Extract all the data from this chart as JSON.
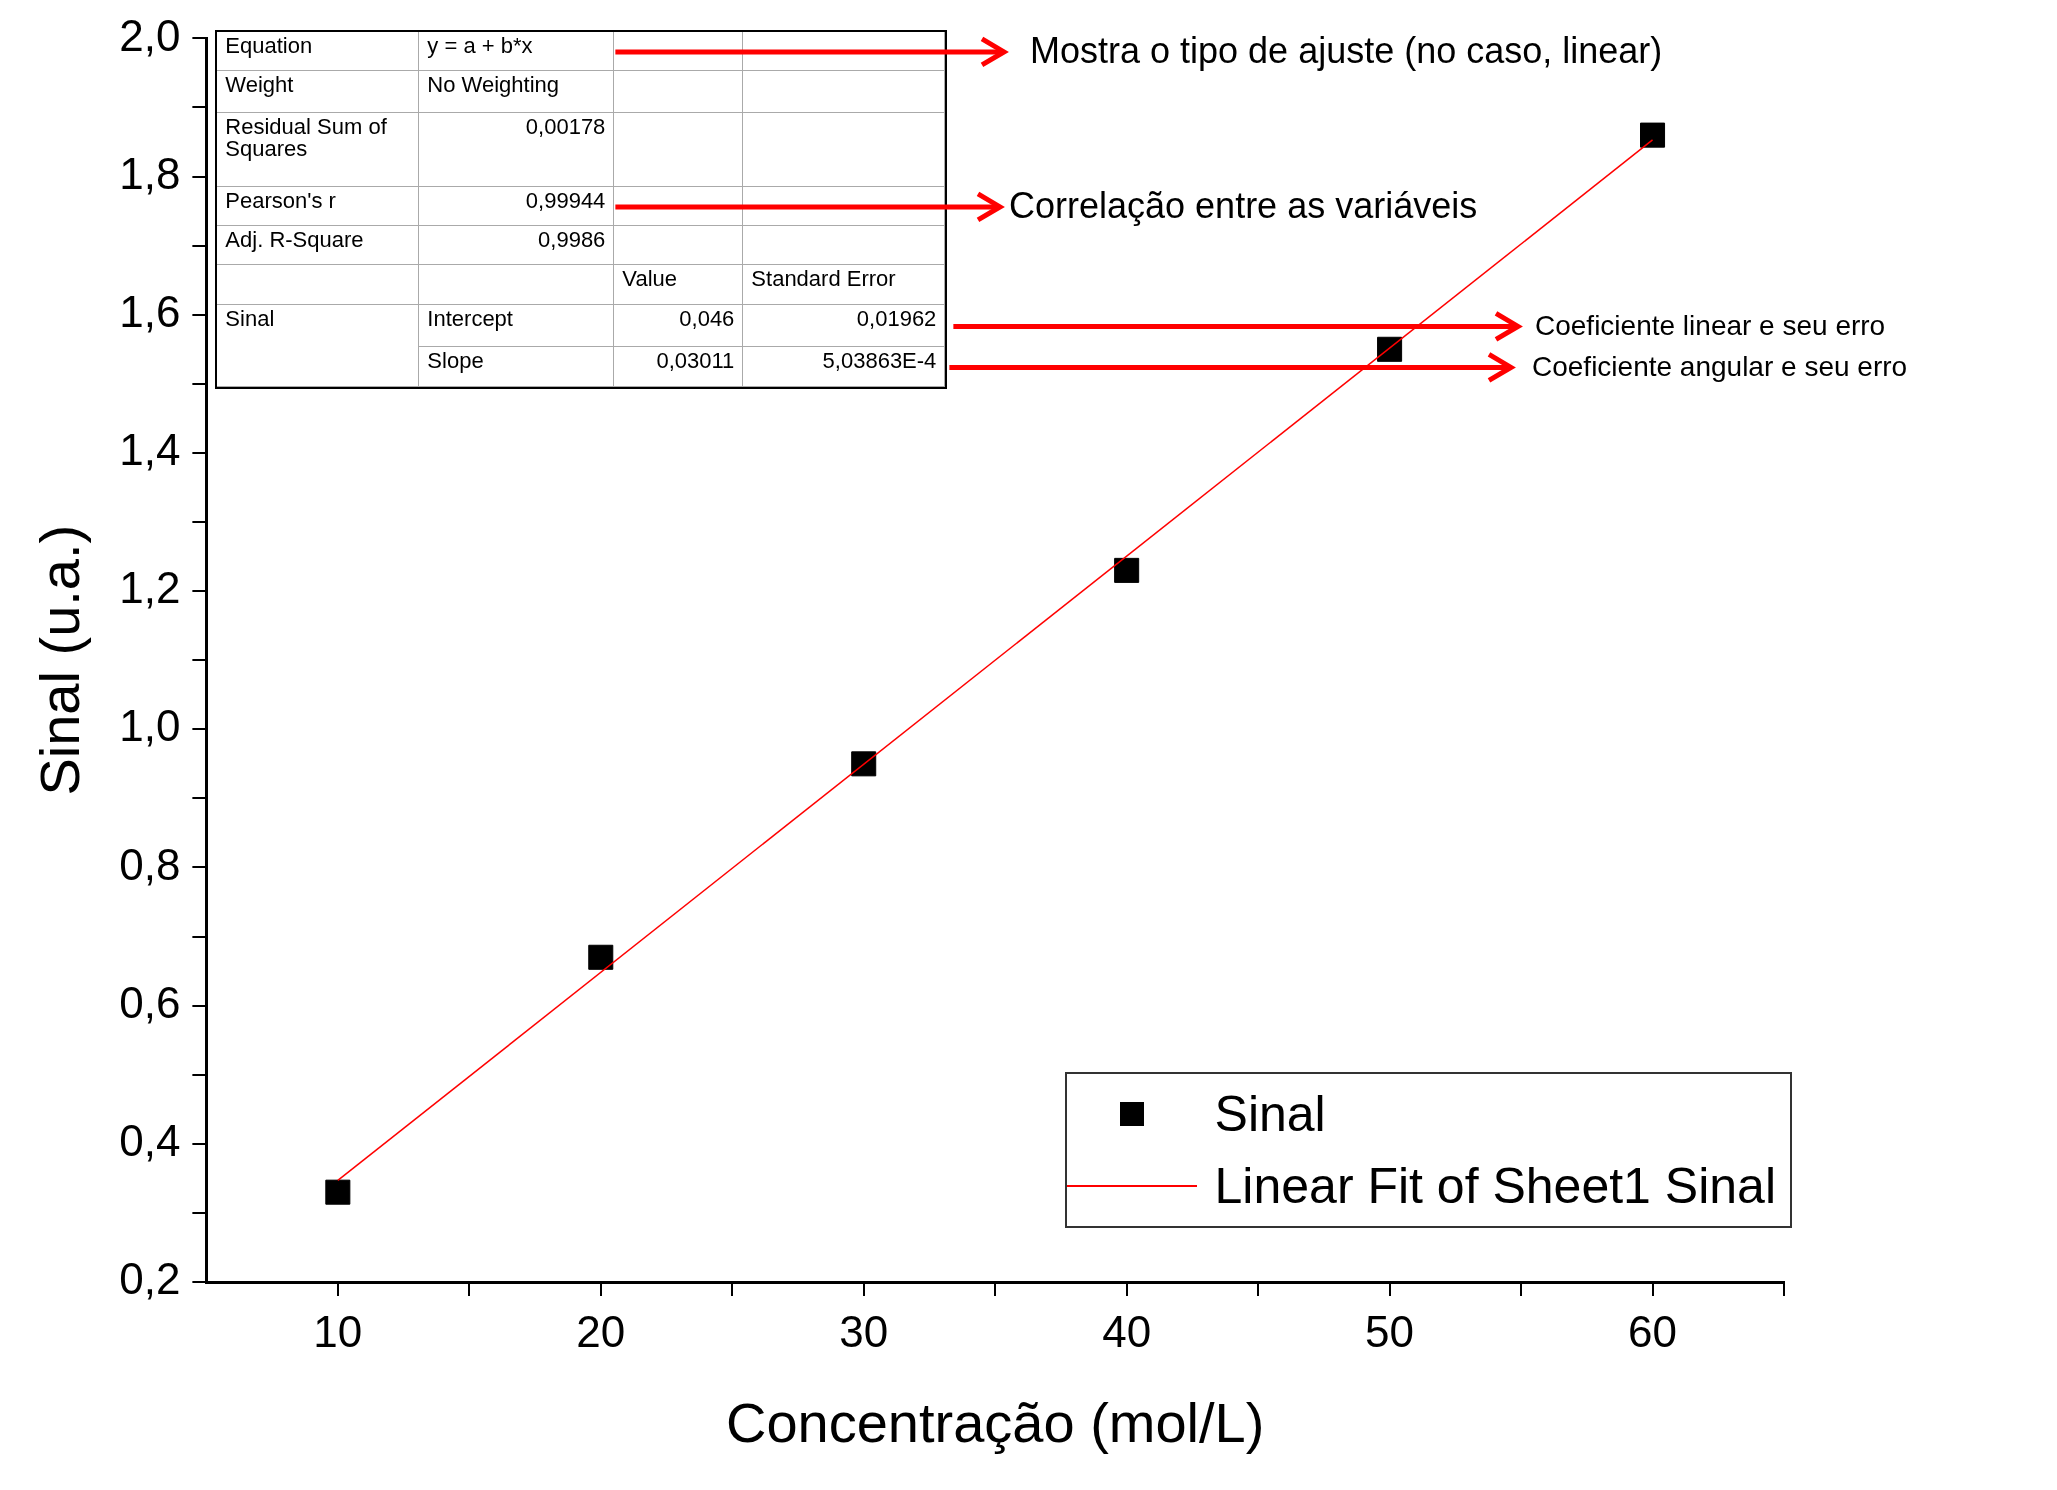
{
  "chart_data": {
    "type": "scatter",
    "xlabel": "Concentração (mol/L)",
    "ylabel": "Sinal (u.a.)",
    "xlim": [
      5,
      65
    ],
    "xticks": [
      10,
      {
        "value": 15,
        "label": null
      },
      20,
      {
        "value": 25,
        "label": null
      },
      30,
      {
        "value": 35,
        "label": null
      },
      40,
      {
        "value": 45,
        "label": null
      },
      50,
      {
        "value": 55,
        "label": null
      },
      60,
      {
        "value": 65,
        "label": null
      }
    ],
    "ylim": [
      0.2,
      2.0
    ],
    "yticks": [
      {
        "value": 0.2,
        "label": "0,2"
      },
      {
        "value": 0.3,
        "label": null
      },
      {
        "value": 0.4,
        "label": "0,4"
      },
      {
        "value": 0.5,
        "label": null
      },
      {
        "value": 0.6,
        "label": "0,6"
      },
      {
        "value": 0.7,
        "label": null
      },
      {
        "value": 0.8,
        "label": "0,8"
      },
      {
        "value": 0.9,
        "label": null
      },
      {
        "value": 1.0,
        "label": "1,0"
      },
      {
        "value": 1.1,
        "label": null
      },
      {
        "value": 1.2,
        "label": "1,2"
      },
      {
        "value": 1.3,
        "label": null
      },
      {
        "value": 1.4,
        "label": "1,4"
      },
      {
        "value": 1.5,
        "label": null
      },
      {
        "value": 1.6,
        "label": "1,6"
      },
      {
        "value": 1.7,
        "label": null
      },
      {
        "value": 1.8,
        "label": "1,8"
      },
      {
        "value": 1.9,
        "label": null
      },
      {
        "value": 2.0,
        "label": "2,0"
      }
    ],
    "marker": "square",
    "grid": false,
    "legend": "bottom right",
    "series": [
      {
        "name": "Sinal",
        "color": "#000000",
        "x": [
          10,
          20,
          30,
          40,
          50,
          60
        ],
        "values": [
          0.33,
          0.67,
          0.95,
          1.23,
          1.55,
          1.86
        ]
      },
      {
        "name": "Linear Fit of Sheet1 Sinal",
        "type": "line",
        "color": "#ff0000",
        "marker": "none",
        "x": [
          10,
          60
        ],
        "values": [
          0.347,
          1.853
        ]
      }
    ],
    "annotations": [
      "Equation",
      "y = a + b*x",
      "Weight",
      "No Weighting",
      "Residual Sum of Squares",
      "0,00178",
      "Pearson's r",
      "0,99944",
      "Adj. R-Square",
      "0,9986",
      "Value",
      "Standard Error",
      "Sinal",
      "Intercept",
      "0,046",
      "0,01962",
      "Slope",
      "0,03011",
      "5,03863E-4",
      "Mostra o tipo de ajuste (no caso, linear)",
      "Correlação entre as variáveis",
      "Coeficiente linear e seu erro",
      "Coeficiente angular e seu erro"
    ]
  }
}
